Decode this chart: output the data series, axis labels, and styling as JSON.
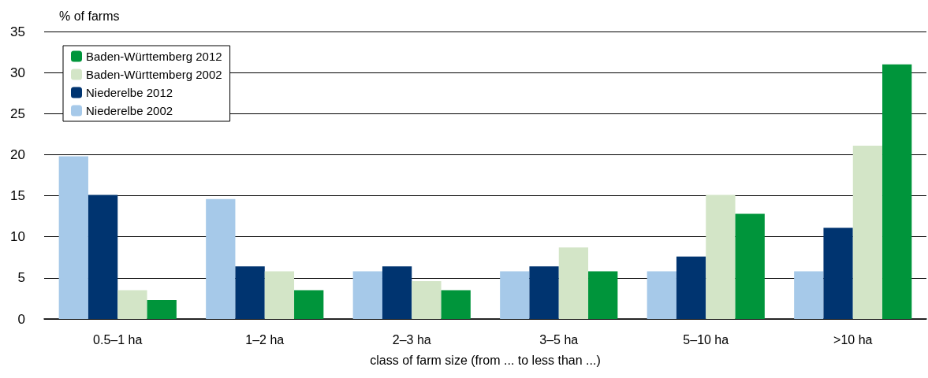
{
  "chart_data": {
    "type": "bar",
    "ylabel": "% of farms",
    "xlabel": "class of farm size (from ... to less than ...)",
    "categories": [
      "0.5–1 ha",
      "1–2 ha",
      "2–3 ha",
      "3–5 ha",
      "5–10 ha",
      ">10 ha"
    ],
    "series": [
      {
        "name": "Niederelbe 2002",
        "color": "#a6c9e9",
        "values": [
          19.8,
          14.6,
          5.8,
          5.8,
          5.8,
          5.8
        ]
      },
      {
        "name": "Niederelbe 2012",
        "color": "#003470",
        "values": [
          15.1,
          6.4,
          6.4,
          6.4,
          7.6,
          11.1
        ]
      },
      {
        "name": "Baden-Württemberg 2002",
        "color": "#d3e5c7",
        "values": [
          3.5,
          5.8,
          4.6,
          8.7,
          15.1,
          21.1
        ]
      },
      {
        "name": "Baden-Württemberg 2012",
        "color": "#00953b",
        "values": [
          2.3,
          3.5,
          3.5,
          5.8,
          12.8,
          31
        ]
      }
    ],
    "ylim": [
      0,
      35
    ],
    "yticks": [
      0,
      5,
      10,
      15,
      20,
      25,
      30,
      35
    ],
    "grid": "y",
    "legend": "top left"
  }
}
